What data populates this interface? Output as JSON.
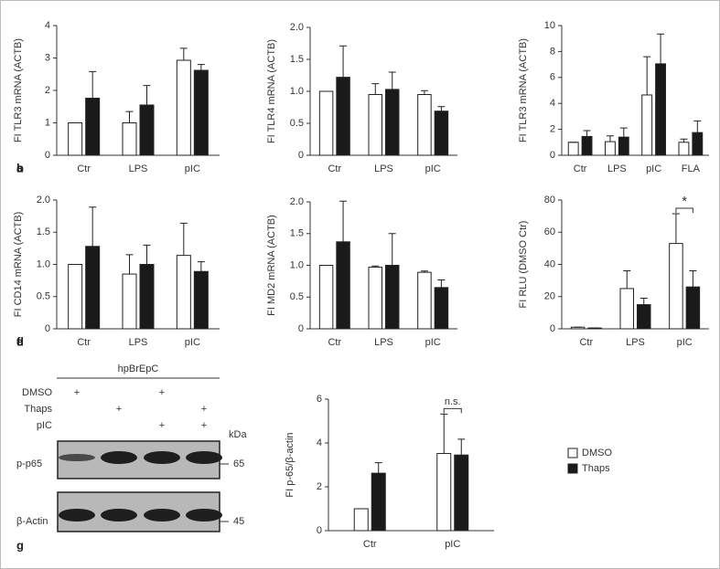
{
  "chart_data": [
    {
      "type": "bar",
      "label": "a",
      "y_label": "FI TLR3 mRNA (ACTB)",
      "categories": [
        "Ctr",
        "LPS",
        "pIC"
      ],
      "series": [
        {
          "color": "#ffffff",
          "values": [
            1,
            1,
            2.93
          ],
          "errors": [
            0,
            0.35,
            0.37
          ]
        },
        {
          "color": "#1a1a1a",
          "values": [
            1.76,
            1.55,
            2.62
          ],
          "errors": [
            0.82,
            0.6,
            0.18
          ]
        }
      ],
      "ylim": [
        0,
        4
      ],
      "yticks": [
        0,
        1,
        2,
        3,
        4
      ]
    },
    {
      "type": "bar",
      "label": "b",
      "y_label": "FI TLR4 mRNA (ACTB)",
      "categories": [
        "Ctr",
        "LPS",
        "pIC"
      ],
      "series": [
        {
          "color": "#ffffff",
          "values": [
            1.0,
            0.95,
            0.95
          ],
          "errors": [
            0,
            0.17,
            0.06
          ]
        },
        {
          "color": "#1a1a1a",
          "values": [
            1.22,
            1.03,
            0.69
          ],
          "errors": [
            0.49,
            0.27,
            0.07
          ]
        }
      ],
      "ylim": [
        0,
        2
      ],
      "yticks": [
        0,
        0.5,
        {
          "value": 1,
          "label": "1.0"
        },
        1.5,
        {
          "value": 2,
          "label": "2.0"
        }
      ]
    },
    {
      "type": "bar",
      "label": "c",
      "y_label": "FI TLR3 mRNA (ACTB)",
      "categories": [
        "Ctr",
        "LPS",
        "pIC",
        "FLA"
      ],
      "series": [
        {
          "color": "#ffffff",
          "values": [
            1.0,
            1.05,
            4.65,
            1.0
          ],
          "errors": [
            0,
            0.45,
            2.95,
            0.25
          ]
        },
        {
          "color": "#1a1a1a",
          "values": [
            1.45,
            1.4,
            7.05,
            1.75
          ],
          "errors": [
            0.45,
            0.7,
            2.3,
            0.9
          ]
        }
      ],
      "ylim": [
        0,
        10
      ],
      "yticks": [
        0,
        2,
        4,
        6,
        8,
        10
      ]
    },
    {
      "type": "bar",
      "label": "d",
      "y_label": "FI CD14 mRNA (ACTB)",
      "categories": [
        "Ctr",
        "LPS",
        "pIC"
      ],
      "series": [
        {
          "color": "#ffffff",
          "values": [
            1.0,
            0.85,
            1.14
          ],
          "errors": [
            0,
            0.3,
            0.5
          ]
        },
        {
          "color": "#1a1a1a",
          "values": [
            1.28,
            1.0,
            0.89
          ],
          "errors": [
            0.61,
            0.3,
            0.15
          ]
        }
      ],
      "ylim": [
        0,
        2
      ],
      "yticks": [
        0,
        0.5,
        {
          "value": 1,
          "label": "1.0"
        },
        1.5,
        {
          "value": 2,
          "label": "2.0"
        }
      ]
    },
    {
      "type": "bar",
      "label": "e",
      "y_label": "FI MD2 mRNA (ACTB)",
      "categories": [
        "Ctr",
        "LPS",
        "pIC"
      ],
      "series": [
        {
          "color": "#ffffff",
          "values": [
            1.0,
            0.97,
            0.89
          ],
          "errors": [
            0,
            0.02,
            0.02
          ]
        },
        {
          "color": "#1a1a1a",
          "values": [
            1.37,
            1.0,
            0.65
          ],
          "errors": [
            0.64,
            0.5,
            0.12
          ]
        }
      ],
      "ylim": [
        0,
        2
      ],
      "yticks": [
        0,
        0.5,
        {
          "value": 1,
          "label": "1.0"
        },
        1.5,
        {
          "value": 2,
          "label": "2.0"
        }
      ]
    },
    {
      "type": "bar",
      "label": "f",
      "y_label": "FI RLU (DMSO Ctr)",
      "categories": [
        "Ctr",
        "LPS",
        "pIC"
      ],
      "series": [
        {
          "color": "#ffffff",
          "values": [
            1,
            25,
            53
          ],
          "errors": [
            0,
            11,
            18.5
          ]
        },
        {
          "color": "#1a1a1a",
          "values": [
            0.5,
            15,
            26
          ],
          "errors": [
            0,
            4,
            10
          ]
        }
      ],
      "ylim": [
        0,
        80
      ],
      "yticks": [
        0,
        20,
        40,
        60,
        80
      ],
      "annotation": {
        "text": "*",
        "category": "pIC"
      }
    },
    {
      "type": "bar",
      "y_label": "FI p-65/β-actin",
      "categories": [
        "Ctr",
        "pIC"
      ],
      "series": [
        {
          "color": "#ffffff",
          "values": [
            1,
            3.52
          ],
          "errors": [
            0,
            1.8
          ]
        },
        {
          "color": "#1a1a1a",
          "values": [
            2.62,
            3.45
          ],
          "errors": [
            0.48,
            0.72
          ]
        }
      ],
      "ylim": [
        0,
        6
      ],
      "yticks": [
        0,
        2,
        4,
        6
      ],
      "annotation": {
        "text": "n.s.",
        "category": "pIC"
      }
    }
  ],
  "legend": [
    {
      "name": "DMSO",
      "color": "#ffffff"
    },
    {
      "name": "Thaps",
      "color": "#1a1a1a"
    }
  ],
  "blot": {
    "label": "g",
    "title": "hpBrEpC",
    "unit": "kDa",
    "rows": [
      {
        "label": "DMSO",
        "lanes": [
          "+",
          null,
          "+",
          null
        ]
      },
      {
        "label": "Thaps",
        "lanes": [
          null,
          "+",
          null,
          "+"
        ]
      },
      {
        "label": "pIC",
        "lanes": [
          null,
          null,
          "+",
          "+"
        ]
      }
    ],
    "bands": [
      {
        "label": "p-p65",
        "kda": "65"
      },
      {
        "label": "β-Actin",
        "kda": "45"
      }
    ]
  }
}
